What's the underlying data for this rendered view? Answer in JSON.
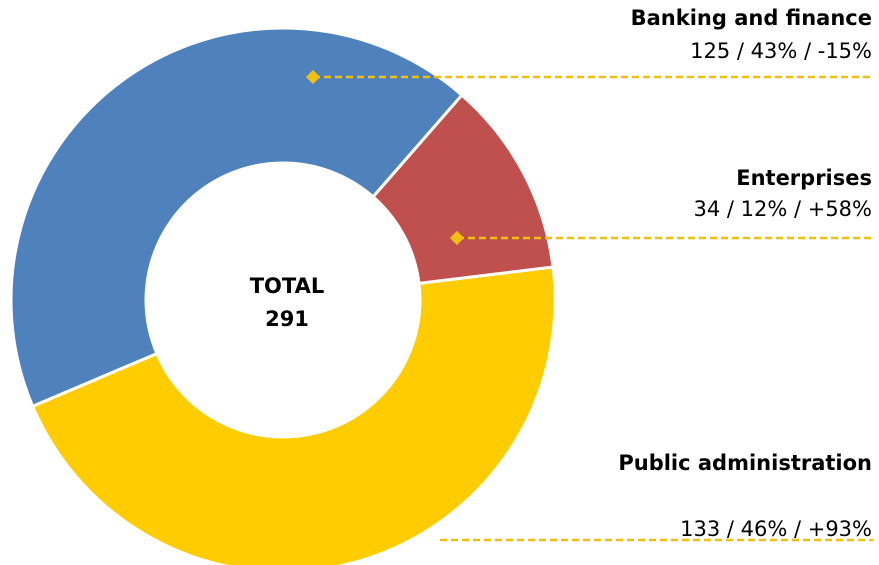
{
  "chart_data": {
    "type": "donut",
    "categories": [
      "Banking and finance",
      "Enterprises",
      "Public administration"
    ],
    "values": [
      125,
      34,
      133
    ],
    "value_labels": [
      "125 / 43% / -15%",
      "34 / 12% / +58%",
      "133 / 46% / +93%"
    ],
    "colors": [
      "#4f81bd",
      "#c0504d",
      "#ffcc00"
    ],
    "leader_color": "#f0c010",
    "center_label": "TOTAL",
    "total": 291
  }
}
